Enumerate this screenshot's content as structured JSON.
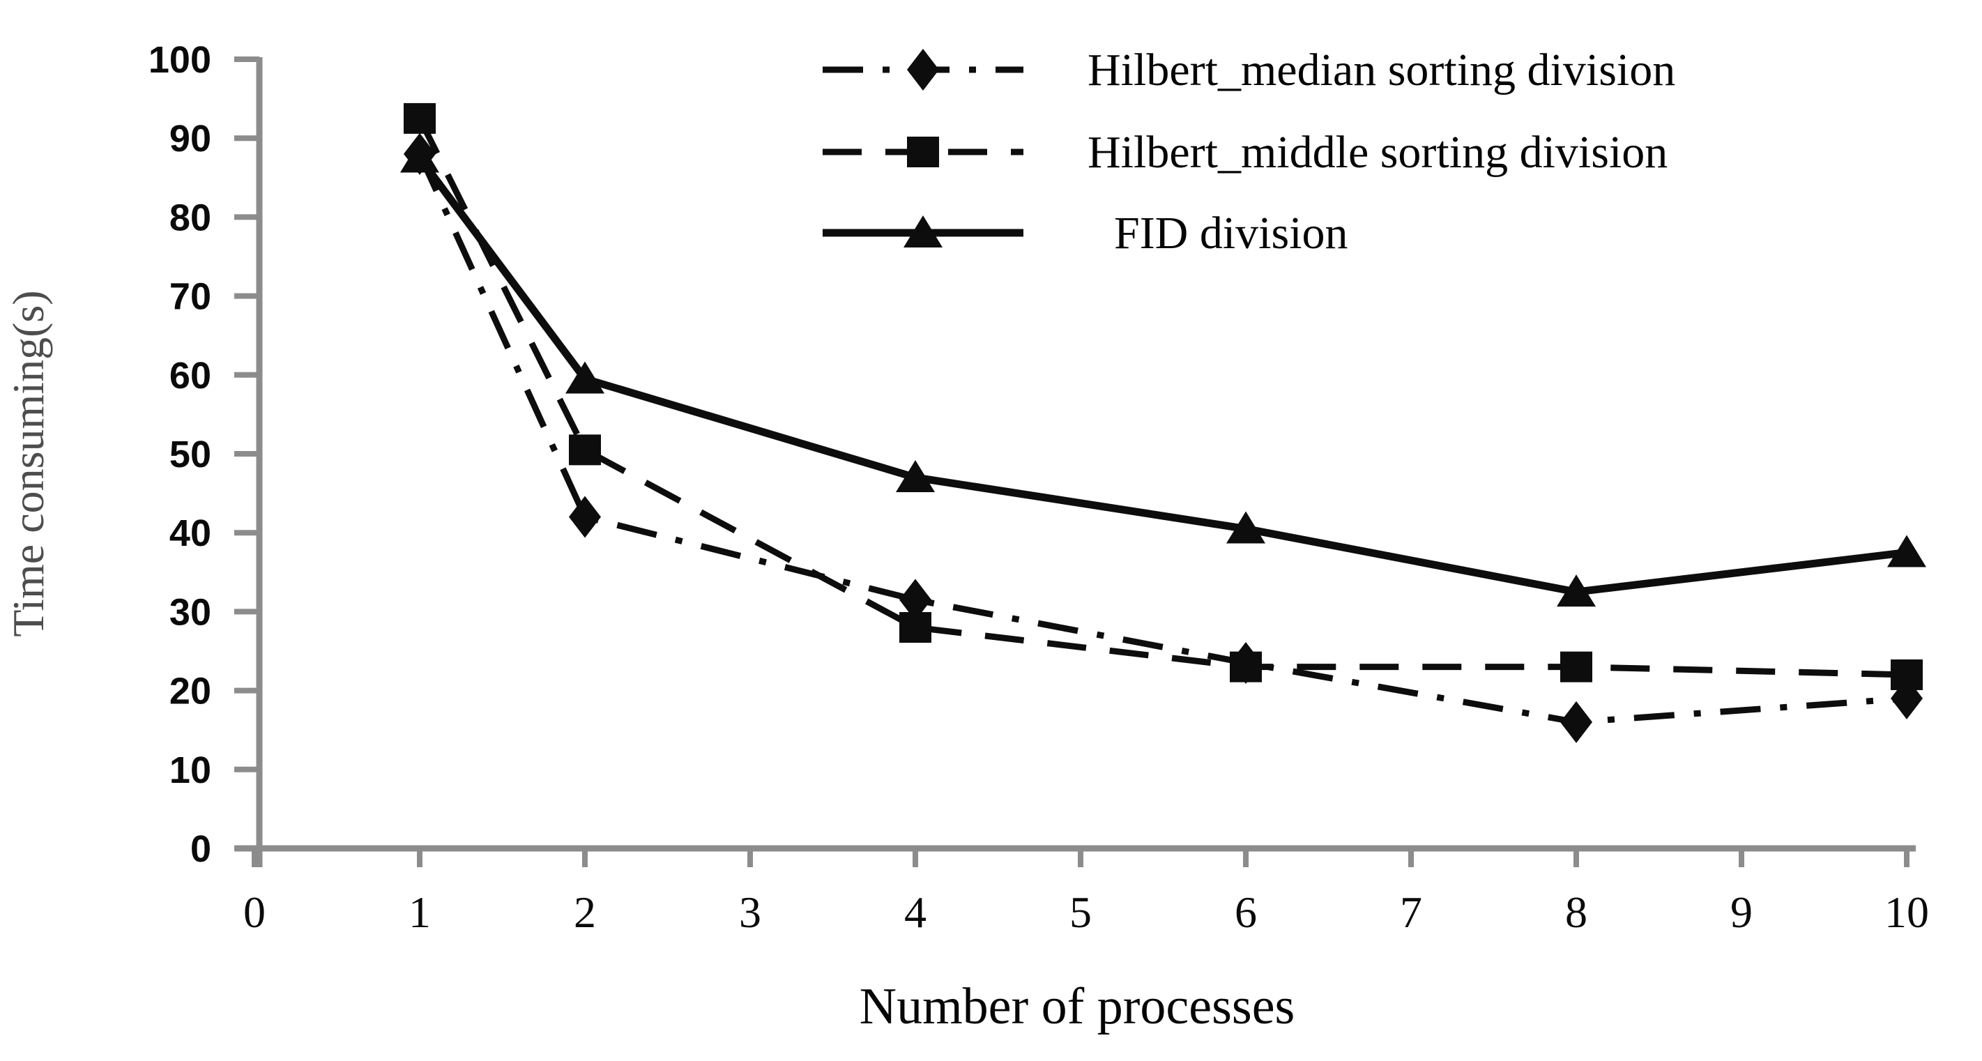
{
  "figure": {
    "x_axis_title": "Number of processes",
    "y_axis_title": "Time consuming(s)"
  },
  "chart_data": {
    "type": "line",
    "title": "",
    "xlabel": "Number of processes",
    "ylabel": "Time consuming(s)",
    "x": [
      1,
      2,
      4,
      6,
      8,
      10
    ],
    "x_tick_labels": [
      "0",
      "1",
      "2",
      "3",
      "4",
      "5",
      "6",
      "7",
      "8",
      "9",
      "10"
    ],
    "y_tick_labels": [
      "0",
      "10",
      "20",
      "30",
      "40",
      "50",
      "60",
      "70",
      "80",
      "90",
      "100"
    ],
    "xlim": [
      0,
      10
    ],
    "ylim": [
      0,
      100
    ],
    "grid": false,
    "legend_position": "top-center-inside",
    "axis_color": "#8c8c8c",
    "series_color": "#0d0d0d",
    "ylabel_color": "#4d4d4d",
    "series": [
      {
        "name": "Hilbert_median sorting division",
        "marker": "diamond",
        "line_style": "dash-dot",
        "values": [
          88,
          42,
          31.5,
          23.5,
          16,
          19
        ]
      },
      {
        "name": "Hilbert_middle sorting division",
        "marker": "square",
        "line_style": "dashed",
        "values": [
          92.5,
          50.5,
          28,
          23,
          23,
          22
        ]
      },
      {
        "name": "FID division",
        "marker": "triangle",
        "line_style": "solid",
        "values": [
          87.5,
          59.5,
          47,
          40.5,
          32.5,
          37.5
        ]
      }
    ]
  }
}
